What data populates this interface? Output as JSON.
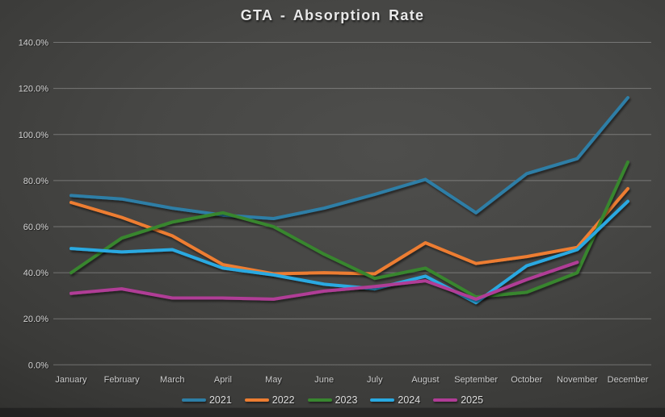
{
  "title": "GTA - Absorption Rate",
  "chart_data": {
    "type": "line",
    "title": "GTA - Absorption Rate",
    "categories": [
      "January",
      "February",
      "March",
      "April",
      "May",
      "June",
      "July",
      "August",
      "September",
      "October",
      "November",
      "December"
    ],
    "series": [
      {
        "name": "2021",
        "color": "#2d7ea6",
        "values": [
          73.5,
          72,
          68,
          65,
          63.5,
          68,
          74,
          80.5,
          66,
          83,
          89.5,
          116
        ]
      },
      {
        "name": "2022",
        "color": "#ed7d31",
        "values": [
          70.5,
          64,
          56,
          43.5,
          39.5,
          40,
          39.5,
          53,
          44,
          47,
          51,
          76.5
        ]
      },
      {
        "name": "2023",
        "color": "#38862f",
        "values": [
          40,
          55,
          62,
          66,
          60,
          48,
          37.5,
          42,
          29.5,
          31.5,
          40,
          88
        ]
      },
      {
        "name": "2024",
        "color": "#29a9e1",
        "values": [
          50.5,
          49,
          50,
          42,
          39,
          35,
          33,
          38.5,
          27,
          43,
          50,
          71
        ]
      },
      {
        "name": "2025",
        "color": "#b03c96",
        "values": [
          31,
          33,
          29,
          29,
          28.5,
          32,
          34,
          36.5,
          28.5,
          37,
          44.5,
          null
        ]
      }
    ],
    "yticks": [
      "0.0%",
      "20.0%",
      "40.0%",
      "60.0%",
      "80.0%",
      "100.0%",
      "120.0%",
      "140.0%"
    ],
    "ytick_values": [
      0,
      20,
      40,
      60,
      80,
      100,
      120,
      140
    ],
    "ylim": [
      0,
      140
    ],
    "grid": true,
    "legend_position": "bottom"
  }
}
